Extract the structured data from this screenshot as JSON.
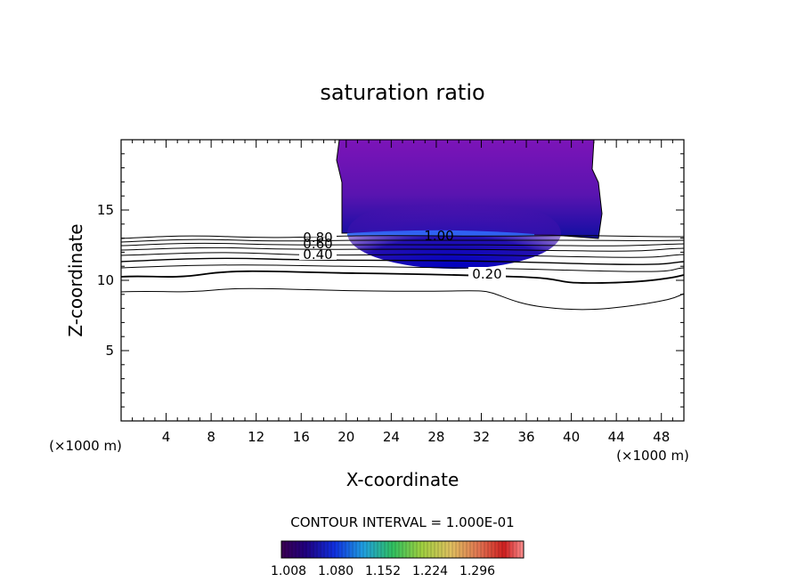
{
  "chart_data": {
    "type": "contour",
    "title": "saturation ratio",
    "xlabel": "X-coordinate",
    "ylabel": "Z-coordinate",
    "x_unit_left": "(×1000 m)",
    "x_unit_right": "(×1000 m)",
    "xlim": [
      0,
      50
    ],
    "ylim": [
      0,
      20
    ],
    "xticks": [
      4,
      8,
      12,
      16,
      20,
      24,
      28,
      32,
      36,
      40,
      44,
      48
    ],
    "yticks": [
      5,
      10,
      15
    ],
    "contour_interval_label": "CONTOUR INTERVAL = 1.000E-01",
    "line_labels": [
      "0.80",
      "0.60",
      "0.40",
      "0.20",
      "1.00"
    ],
    "colorbar_ticks": [
      "1.008",
      "1.080",
      "1.152",
      "1.224",
      "1.296"
    ],
    "colors": {
      "fill_outer": "#7a16b4",
      "fill_inner": "#1010a8",
      "fill_core": "#2060ff"
    }
  }
}
